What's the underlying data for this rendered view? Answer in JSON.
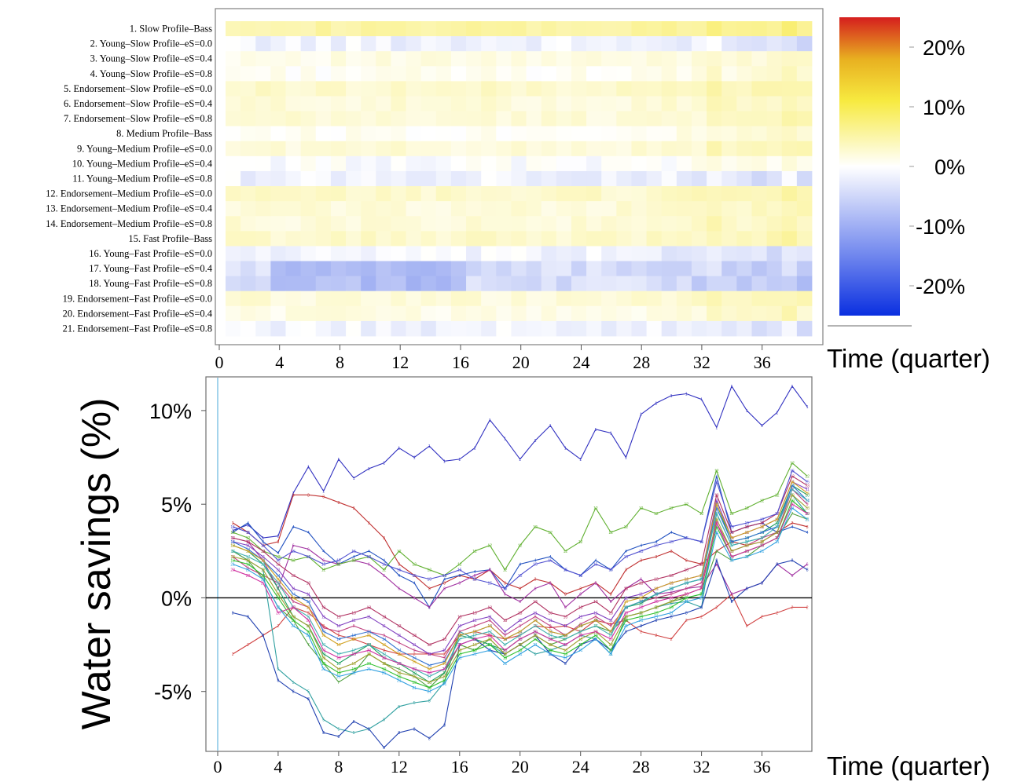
{
  "chart_data": [
    {
      "type": "heatmap",
      "row_labels": [
        "1. Slow Profile–Bass",
        "2. Young–Slow Profile–eS=0.0",
        "3. Young–Slow Profile–eS=0.4",
        "4. Young–Slow Profile–eS=0.8",
        "5. Endorsement–Slow Profile–eS=0.0",
        "6. Endorsement–Slow Profile–eS=0.4",
        "7. Endorsement–Slow Profile–eS=0.8",
        "8. Medium Profile–Bass",
        "9. Young–Medium Profile–eS=0.0",
        "10. Young–Medium Profile–eS=0.4",
        "11. Young–Medium Profile–eS=0.8",
        "12. Endorsement–Medium Profile–eS=0.0",
        "13. Endorsement–Medium Profile–eS=0.4",
        "14. Endorsement–Medium Profile–eS=0.8",
        "15. Fast Profile–Bass",
        "16. Young–Fast Profile–eS=0.0",
        "17. Young–Fast Profile–eS=0.4",
        "18. Young–Fast Profile–eS=0.8",
        "19. Endorsement–Fast Profile–eS=0.0",
        "20. Endorsement–Fast Profile–eS=0.4",
        "21. Endorsement–Fast Profile–eS=0.8"
      ],
      "x_ticks": [
        "0",
        "4",
        "8",
        "12",
        "16",
        "20",
        "24",
        "28",
        "32",
        "36"
      ],
      "xlabel": "Time (quarter)",
      "xlim": [
        0,
        39
      ],
      "colorbar": {
        "ticks": [
          "20%",
          "10%",
          "0%",
          "-10%",
          "-20%"
        ],
        "range": [
          -25,
          25
        ],
        "colors": [
          "#0a2fe0",
          "#ffffff",
          "#f4e800",
          "#d62020"
        ]
      },
      "row_base_values": [
        7,
        -1,
        2,
        1,
        4,
        3,
        3,
        1,
        3,
        0,
        -1,
        4,
        3,
        3,
        4,
        -1,
        -3,
        -3,
        3,
        2,
        -1
      ],
      "time_trend": 0.12
    },
    {
      "type": "line",
      "x_ticks": [
        "0",
        "4",
        "8",
        "12",
        "16",
        "20",
        "24",
        "28",
        "32",
        "36"
      ],
      "xlabel": "Time (quarter)",
      "ylabel": "Water savings (%)",
      "y_ticks": [
        "10%",
        "5%",
        "0%",
        "-5%"
      ],
      "xlim": [
        0,
        39.3
      ],
      "ylim": [
        -8.2,
        11.8
      ],
      "x": [
        1,
        2,
        3,
        4,
        5,
        6,
        7,
        8,
        9,
        10,
        11,
        12,
        13,
        14,
        15,
        16,
        17,
        18,
        19,
        20,
        21,
        22,
        23,
        24,
        25,
        26,
        27,
        28,
        29,
        30,
        31,
        32,
        33,
        34,
        35,
        36,
        37,
        38,
        39
      ],
      "series": [
        {
          "label": "1",
          "color": "#3030c0",
          "values": [
            3.6,
            3.9,
            3.2,
            3.3,
            5.6,
            7.0,
            5.7,
            7.4,
            6.4,
            6.9,
            7.2,
            8.0,
            7.5,
            8.1,
            7.3,
            7.4,
            8.0,
            9.5,
            8.5,
            7.4,
            8.4,
            9.2,
            8.0,
            7.4,
            9.0,
            8.8,
            7.5,
            9.8,
            10.4,
            10.8,
            10.9,
            10.6,
            9.1,
            11.3,
            10.0,
            9.2,
            9.9,
            11.3,
            10.2
          ]
        },
        {
          "label": "2",
          "color": "#d04040",
          "values": [
            -3.0,
            -2.5,
            -2.0,
            -1.5,
            -0.5,
            -0.8,
            -1.5,
            -2.0,
            -2.2,
            -2.5,
            -2.8,
            -3.0,
            -3.0,
            -3.0,
            -3.0,
            -2.0,
            -1.8,
            -2.0,
            -2.2,
            -2.0,
            -1.5,
            -1.6,
            -1.5,
            -1.8,
            -1.2,
            -1.4,
            -1.2,
            -1.8,
            -2.0,
            -2.2,
            -1.2,
            -1.0,
            -0.5,
            0.2,
            -1.5,
            -1.0,
            -0.8,
            -0.5,
            -0.5
          ]
        },
        {
          "label": "3",
          "color": "#c03030",
          "values": [
            4.0,
            3.5,
            2.8,
            3.0,
            5.5,
            5.5,
            5.4,
            5.1,
            4.8,
            4.0,
            3.2,
            1.8,
            1.2,
            0.5,
            0.8,
            1.2,
            1.0,
            1.5,
            0.8,
            0.5,
            1.0,
            0.8,
            0.2,
            0.5,
            0.8,
            0.2,
            1.5,
            2.0,
            2.2,
            2.5,
            2.0,
            1.8,
            2.5,
            3.0,
            2.8,
            3.0,
            3.5,
            4.0,
            3.8
          ]
        },
        {
          "label": "4",
          "color": "#2050c0",
          "values": [
            3.5,
            4.0,
            3.0,
            2.4,
            3.8,
            3.5,
            2.5,
            1.8,
            2.2,
            2.5,
            2.0,
            1.2,
            0.8,
            -0.5,
            1.0,
            1.2,
            1.4,
            1.5,
            0.5,
            1.8,
            2.0,
            2.2,
            1.5,
            1.2,
            2.0,
            1.5,
            2.5,
            2.8,
            3.0,
            3.5,
            3.2,
            3.0,
            6.5,
            3.5,
            3.8,
            4.0,
            3.5,
            3.8,
            3.5
          ]
        },
        {
          "label": "5",
          "color": "#30a0a0",
          "values": [
            2.5,
            2.0,
            1.5,
            -3.8,
            -4.5,
            -5.0,
            -6.5,
            -7.0,
            -7.2,
            -7.0,
            -6.5,
            -5.8,
            -5.6,
            -5.5,
            -4.5,
            -1.8,
            -2.2,
            -2.5,
            -3.0,
            -2.5,
            -3.0,
            -2.8,
            -2.5,
            -2.0,
            -2.2,
            -3.0,
            -1.0,
            -0.8,
            -0.5,
            -0.3,
            -0.2,
            -0.5,
            4.5,
            2.8,
            3.0,
            3.2,
            3.5,
            5.5,
            4.5
          ]
        },
        {
          "label": "6",
          "color": "#a030a0",
          "values": [
            3.2,
            3.0,
            2.0,
            0.5,
            2.8,
            2.6,
            2.0,
            1.8,
            2.0,
            1.8,
            1.2,
            0.5,
            0.0,
            -0.5,
            0.5,
            0.8,
            1.2,
            1.5,
            0.2,
            -0.2,
            0.5,
            0.8,
            -0.5,
            0.2,
            0.8,
            -0.2,
            0.5,
            1.0,
            0.2,
            0.3,
            0.5,
            0.6,
            1.8,
            0.2,
            0.5,
            0.8,
            1.8,
            1.2,
            1.8
          ]
        },
        {
          "label": "7",
          "color": "#50a040",
          "values": [
            2.5,
            2.0,
            1.0,
            -0.5,
            -1.2,
            -2.5,
            -3.5,
            -4.5,
            -4.0,
            -3.0,
            -3.5,
            -3.8,
            -4.2,
            -4.8,
            -4.0,
            -2.5,
            -2.8,
            -2.2,
            -3.0,
            -2.5,
            -2.0,
            -2.5,
            -2.2,
            -1.8,
            -1.5,
            -1.8,
            -1.0,
            -0.8,
            -0.5,
            -0.2,
            0.0,
            0.2,
            2.5,
            2.0,
            2.2,
            2.8,
            3.2,
            4.5,
            4.2
          ]
        },
        {
          "label": "8",
          "color": "#2040b0",
          "values": [
            -0.8,
            -1.0,
            -2.0,
            -4.4,
            -5.0,
            -5.4,
            -7.2,
            -7.4,
            -6.6,
            -7.0,
            -8.0,
            -7.2,
            -7.0,
            -7.5,
            -6.8,
            -2.5,
            -2.2,
            -2.8,
            -3.0,
            -2.5,
            -2.0,
            -3.0,
            -3.5,
            -2.5,
            -2.2,
            -2.8,
            -1.8,
            -1.5,
            -1.2,
            -1.0,
            -0.8,
            -0.5,
            2.0,
            -0.2,
            0.5,
            0.8,
            1.8,
            2.0,
            1.5
          ]
        },
        {
          "label": "9",
          "color": "#c04080",
          "values": [
            2.2,
            1.6,
            1.2,
            0.8,
            -0.2,
            -0.5,
            -1.6,
            -1.8,
            -1.5,
            -1.8,
            -2.0,
            -2.4,
            -2.8,
            -3.0,
            -3.2,
            -1.8,
            -1.5,
            -1.2,
            -2.0,
            -1.5,
            -1.0,
            -1.5,
            -2.0,
            -1.4,
            -1.0,
            -1.5,
            -0.5,
            -0.2,
            0.0,
            0.2,
            0.5,
            0.8,
            4.0,
            2.5,
            2.8,
            3.2,
            3.5,
            5.8,
            5.0
          ]
        },
        {
          "label": "10",
          "color": "#20a060",
          "values": [
            2.8,
            2.5,
            1.8,
            0.5,
            -1.0,
            -1.5,
            -3.0,
            -3.5,
            -3.0,
            -2.5,
            -3.2,
            -3.5,
            -4.0,
            -4.5,
            -4.0,
            -2.0,
            -2.2,
            -2.5,
            -2.8,
            -2.2,
            -1.8,
            -2.2,
            -2.0,
            -1.5,
            -1.2,
            -1.8,
            -0.5,
            -0.3,
            0.2,
            0.5,
            0.8,
            1.0,
            5.0,
            3.0,
            3.2,
            3.5,
            4.0,
            6.0,
            5.5
          ]
        },
        {
          "label": "11",
          "color": "#8040c0",
          "values": [
            3.0,
            2.8,
            2.2,
            1.5,
            0.5,
            0.2,
            -1.0,
            -1.5,
            -1.2,
            -1.0,
            -1.5,
            -2.0,
            -2.5,
            -3.0,
            -2.8,
            -1.5,
            -1.2,
            -1.0,
            -1.8,
            -1.2,
            -0.8,
            -1.2,
            -1.5,
            -1.0,
            -0.8,
            -1.2,
            0.0,
            0.2,
            0.5,
            0.8,
            1.0,
            1.2,
            5.2,
            3.2,
            3.5,
            3.8,
            4.2,
            6.2,
            5.8
          ]
        },
        {
          "label": "12",
          "color": "#60b030",
          "values": [
            3.5,
            3.2,
            2.5,
            2.2,
            2.0,
            2.2,
            1.5,
            1.8,
            2.0,
            2.2,
            1.5,
            2.5,
            1.8,
            1.5,
            1.2,
            1.8,
            2.5,
            2.8,
            1.5,
            2.8,
            3.8,
            3.5,
            2.5,
            3.0,
            4.8,
            3.5,
            3.8,
            4.8,
            4.5,
            4.8,
            5.0,
            4.5,
            6.8,
            4.5,
            4.8,
            5.2,
            5.5,
            7.2,
            6.5
          ]
        },
        {
          "label": "13",
          "color": "#b03060",
          "values": [
            3.2,
            3.0,
            2.5,
            1.8,
            1.2,
            0.8,
            -0.5,
            -1.0,
            -0.8,
            -0.5,
            -1.0,
            -1.5,
            -2.0,
            -2.5,
            -2.2,
            -1.0,
            -0.8,
            -0.5,
            -1.2,
            -0.8,
            -0.2,
            -0.8,
            -1.0,
            -0.5,
            -0.2,
            -0.8,
            0.5,
            0.8,
            1.0,
            1.2,
            1.5,
            1.8,
            5.5,
            3.5,
            3.8,
            4.0,
            4.5,
            6.5,
            6.0
          ]
        },
        {
          "label": "14",
          "color": "#3070d0",
          "values": [
            3.0,
            2.6,
            2.0,
            1.2,
            0.2,
            -0.2,
            -1.8,
            -2.2,
            -2.0,
            -1.8,
            -2.2,
            -2.8,
            -3.2,
            -3.6,
            -3.4,
            -2.0,
            -1.8,
            -1.5,
            -2.2,
            -1.8,
            -1.2,
            -1.8,
            -2.0,
            -1.5,
            -1.2,
            -1.8,
            -0.5,
            -0.2,
            0.2,
            0.5,
            0.8,
            1.0,
            4.8,
            3.0,
            3.2,
            3.5,
            3.8,
            6.0,
            5.2
          ]
        },
        {
          "label": "15",
          "color": "#5050d0",
          "values": [
            3.8,
            3.5,
            2.8,
            2.0,
            2.5,
            2.2,
            1.8,
            2.0,
            2.5,
            2.2,
            1.8,
            1.5,
            1.2,
            1.0,
            1.2,
            1.5,
            1.0,
            0.8,
            0.5,
            1.2,
            1.8,
            2.0,
            1.5,
            1.2,
            1.8,
            1.5,
            2.2,
            2.5,
            2.8,
            3.0,
            3.2,
            3.0,
            6.2,
            3.8,
            4.0,
            4.2,
            4.5,
            6.8,
            6.2
          ]
        },
        {
          "label": "16",
          "color": "#d0a020",
          "values": [
            2.8,
            2.5,
            2.0,
            1.0,
            0.0,
            -0.5,
            -2.0,
            -2.5,
            -2.2,
            -2.0,
            -2.5,
            -3.0,
            -3.4,
            -3.8,
            -3.5,
            -2.0,
            -1.8,
            -1.5,
            -2.2,
            -1.8,
            -1.2,
            -1.8,
            -2.0,
            -1.5,
            -1.2,
            -1.8,
            -0.2,
            0.0,
            0.5,
            0.8,
            1.0,
            1.2,
            5.0,
            3.2,
            3.5,
            3.8,
            4.2,
            6.2,
            5.6
          ]
        },
        {
          "label": "17",
          "color": "#40b0b0",
          "values": [
            2.5,
            2.2,
            1.8,
            0.8,
            -0.5,
            -1.0,
            -2.5,
            -3.0,
            -2.8,
            -2.5,
            -3.0,
            -3.5,
            -3.8,
            -4.2,
            -3.8,
            -2.2,
            -2.0,
            -1.8,
            -2.5,
            -2.0,
            -1.5,
            -2.0,
            -2.2,
            -1.8,
            -1.5,
            -2.0,
            -0.5,
            -0.2,
            0.2,
            0.5,
            0.8,
            1.0,
            4.5,
            2.8,
            3.0,
            3.2,
            3.8,
            5.8,
            5.2
          ]
        },
        {
          "label": "18",
          "color": "#a0a030",
          "values": [
            2.2,
            2.0,
            1.5,
            0.2,
            -1.0,
            -1.5,
            -3.2,
            -3.8,
            -3.5,
            -3.0,
            -3.5,
            -4.0,
            -4.2,
            -4.5,
            -4.2,
            -2.8,
            -2.5,
            -2.2,
            -3.0,
            -2.5,
            -2.0,
            -2.5,
            -2.8,
            -2.2,
            -1.8,
            -2.5,
            -1.0,
            -0.8,
            -0.5,
            -0.2,
            0.2,
            0.5,
            4.2,
            2.5,
            2.8,
            3.0,
            3.5,
            5.5,
            4.8
          ]
        },
        {
          "label": "19",
          "color": "#30c030",
          "values": [
            2.0,
            1.8,
            1.2,
            0.0,
            -1.2,
            -1.8,
            -3.5,
            -4.0,
            -3.8,
            -3.5,
            -3.8,
            -4.2,
            -4.5,
            -4.8,
            -4.4,
            -3.0,
            -2.8,
            -2.5,
            -3.2,
            -2.8,
            -2.2,
            -2.8,
            -3.0,
            -2.5,
            -2.0,
            -2.8,
            -1.2,
            -1.0,
            -0.8,
            -0.5,
            0.0,
            0.2,
            3.8,
            2.2,
            2.5,
            2.8,
            3.2,
            5.2,
            4.5
          ]
        },
        {
          "label": "20",
          "color": "#d030a0",
          "values": [
            1.5,
            1.2,
            0.8,
            -0.8,
            -0.5,
            -1.2,
            -2.8,
            -3.2,
            -3.0,
            -2.8,
            -3.2,
            -3.5,
            -3.8,
            -4.0,
            -3.8,
            -2.5,
            -2.2,
            -2.0,
            -2.8,
            -2.2,
            -1.8,
            -2.2,
            -2.5,
            -2.0,
            -1.8,
            -2.2,
            -0.8,
            -0.5,
            -0.2,
            0.0,
            0.2,
            0.5,
            4.0,
            2.2,
            2.5,
            2.8,
            3.2,
            5.0,
            4.5
          ]
        },
        {
          "label": "21",
          "color": "#30a0e0",
          "values": [
            1.8,
            1.5,
            1.0,
            -0.5,
            -1.5,
            -2.0,
            -3.8,
            -4.2,
            -4.0,
            -3.8,
            -4.0,
            -4.4,
            -4.8,
            -5.0,
            -4.6,
            -3.2,
            -3.0,
            -2.8,
            -3.5,
            -3.0,
            -2.5,
            -3.0,
            -3.2,
            -2.8,
            -2.2,
            -3.0,
            -1.5,
            -1.2,
            -1.0,
            -0.8,
            -0.2,
            0.0,
            3.5,
            2.0,
            2.2,
            2.5,
            3.0,
            4.8,
            4.2
          ]
        }
      ]
    }
  ]
}
